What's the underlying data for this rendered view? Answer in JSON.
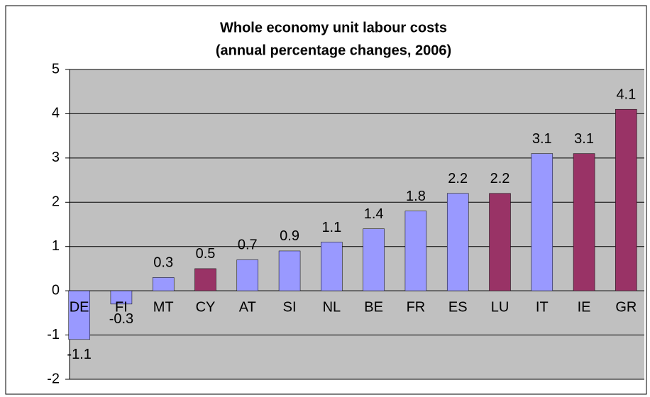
{
  "chart_data": {
    "type": "bar",
    "title": [
      "Whole economy unit labour costs",
      "(annual percentage changes, 2006)"
    ],
    "categories": [
      "DE",
      "FI",
      "MT",
      "CY",
      "AT",
      "SI",
      "NL",
      "BE",
      "FR",
      "ES",
      "LU",
      "IT",
      "IE",
      "GR"
    ],
    "values": [
      -1.1,
      -0.3,
      0.3,
      0.5,
      0.7,
      0.9,
      1.1,
      1.4,
      1.8,
      2.2,
      2.2,
      3.1,
      3.1,
      4.1
    ],
    "colors": [
      "#9999ff",
      "#9999ff",
      "#9999ff",
      "#993366",
      "#9999ff",
      "#9999ff",
      "#9999ff",
      "#9999ff",
      "#9999ff",
      "#9999ff",
      "#993366",
      "#9999ff",
      "#993366",
      "#993366"
    ],
    "ylim": [
      -2,
      5
    ],
    "yticks": [
      -2,
      -1,
      0,
      1,
      2,
      3,
      4,
      5
    ],
    "grid": true,
    "plot_background": "#c0c0c0"
  }
}
